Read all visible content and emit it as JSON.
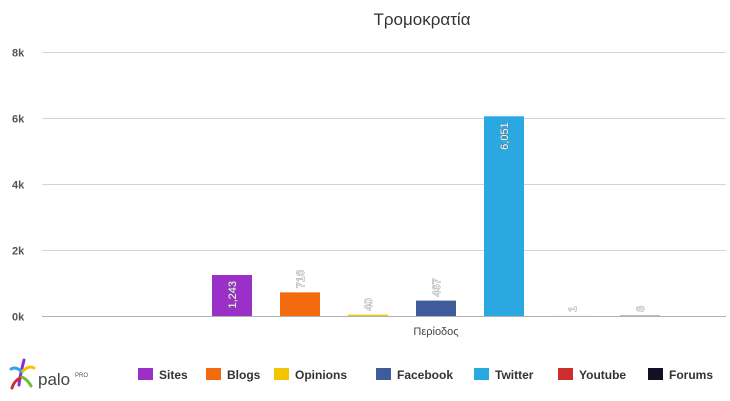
{
  "chart_data": {
    "type": "bar",
    "title": "Τρομοκρατία",
    "xlabel": "Περίοδος",
    "ylabel": "",
    "ylim": [
      0,
      8000
    ],
    "yticks": [
      0,
      2000,
      4000,
      6000,
      8000
    ],
    "ytick_labels": [
      "0k",
      "2k",
      "4k",
      "6k",
      "8k"
    ],
    "grid": true,
    "legend_position": "bottom",
    "series": [
      {
        "name": "Sites",
        "value": 1243,
        "label": "1,243",
        "color": "#9b30c8"
      },
      {
        "name": "Blogs",
        "value": 716,
        "label": "716",
        "color": "#f26b0f"
      },
      {
        "name": "Opinions",
        "value": 40,
        "label": "40",
        "color": "#f5c400"
      },
      {
        "name": "Facebook",
        "value": 467,
        "label": "467",
        "color": "#3f5b9a"
      },
      {
        "name": "Twitter",
        "value": 6051,
        "label": "6,051",
        "color": "#2aa8e0"
      },
      {
        "name": "Youtube",
        "value": 1,
        "label": "1",
        "color": "#cc2d2d"
      },
      {
        "name": "Forums",
        "value": 8,
        "label": "8",
        "color": "#111122"
      }
    ]
  },
  "brand": {
    "logo_text": "palo",
    "logo_sup": "PRO"
  }
}
